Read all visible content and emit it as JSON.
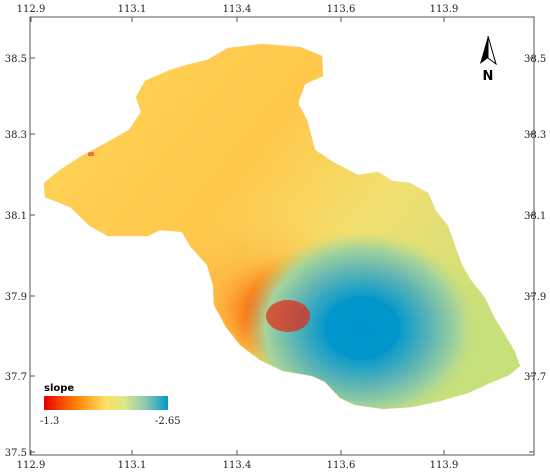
{
  "map": {
    "x_ticks": [
      "112.9",
      "113.1",
      "113.4",
      "113.6",
      "113.9"
    ],
    "y_ticks": [
      "38.5",
      "38.3",
      "38.1",
      "37.9",
      "37.7",
      "37.5"
    ],
    "north_label": "N",
    "legend": {
      "title": "slope",
      "min_label": "-1.3",
      "max_label": "-2.65",
      "colors": [
        "#e60000",
        "#ff7f00",
        "#ffe066",
        "#d8e88a",
        "#8cc8b0",
        "#0099cc"
      ]
    },
    "colors": {
      "frame": "#555555",
      "red_zone": "#e8240f",
      "blue_zone": "#0096cc",
      "yellow": "#ffd24a",
      "green": "#c8e07a"
    }
  }
}
